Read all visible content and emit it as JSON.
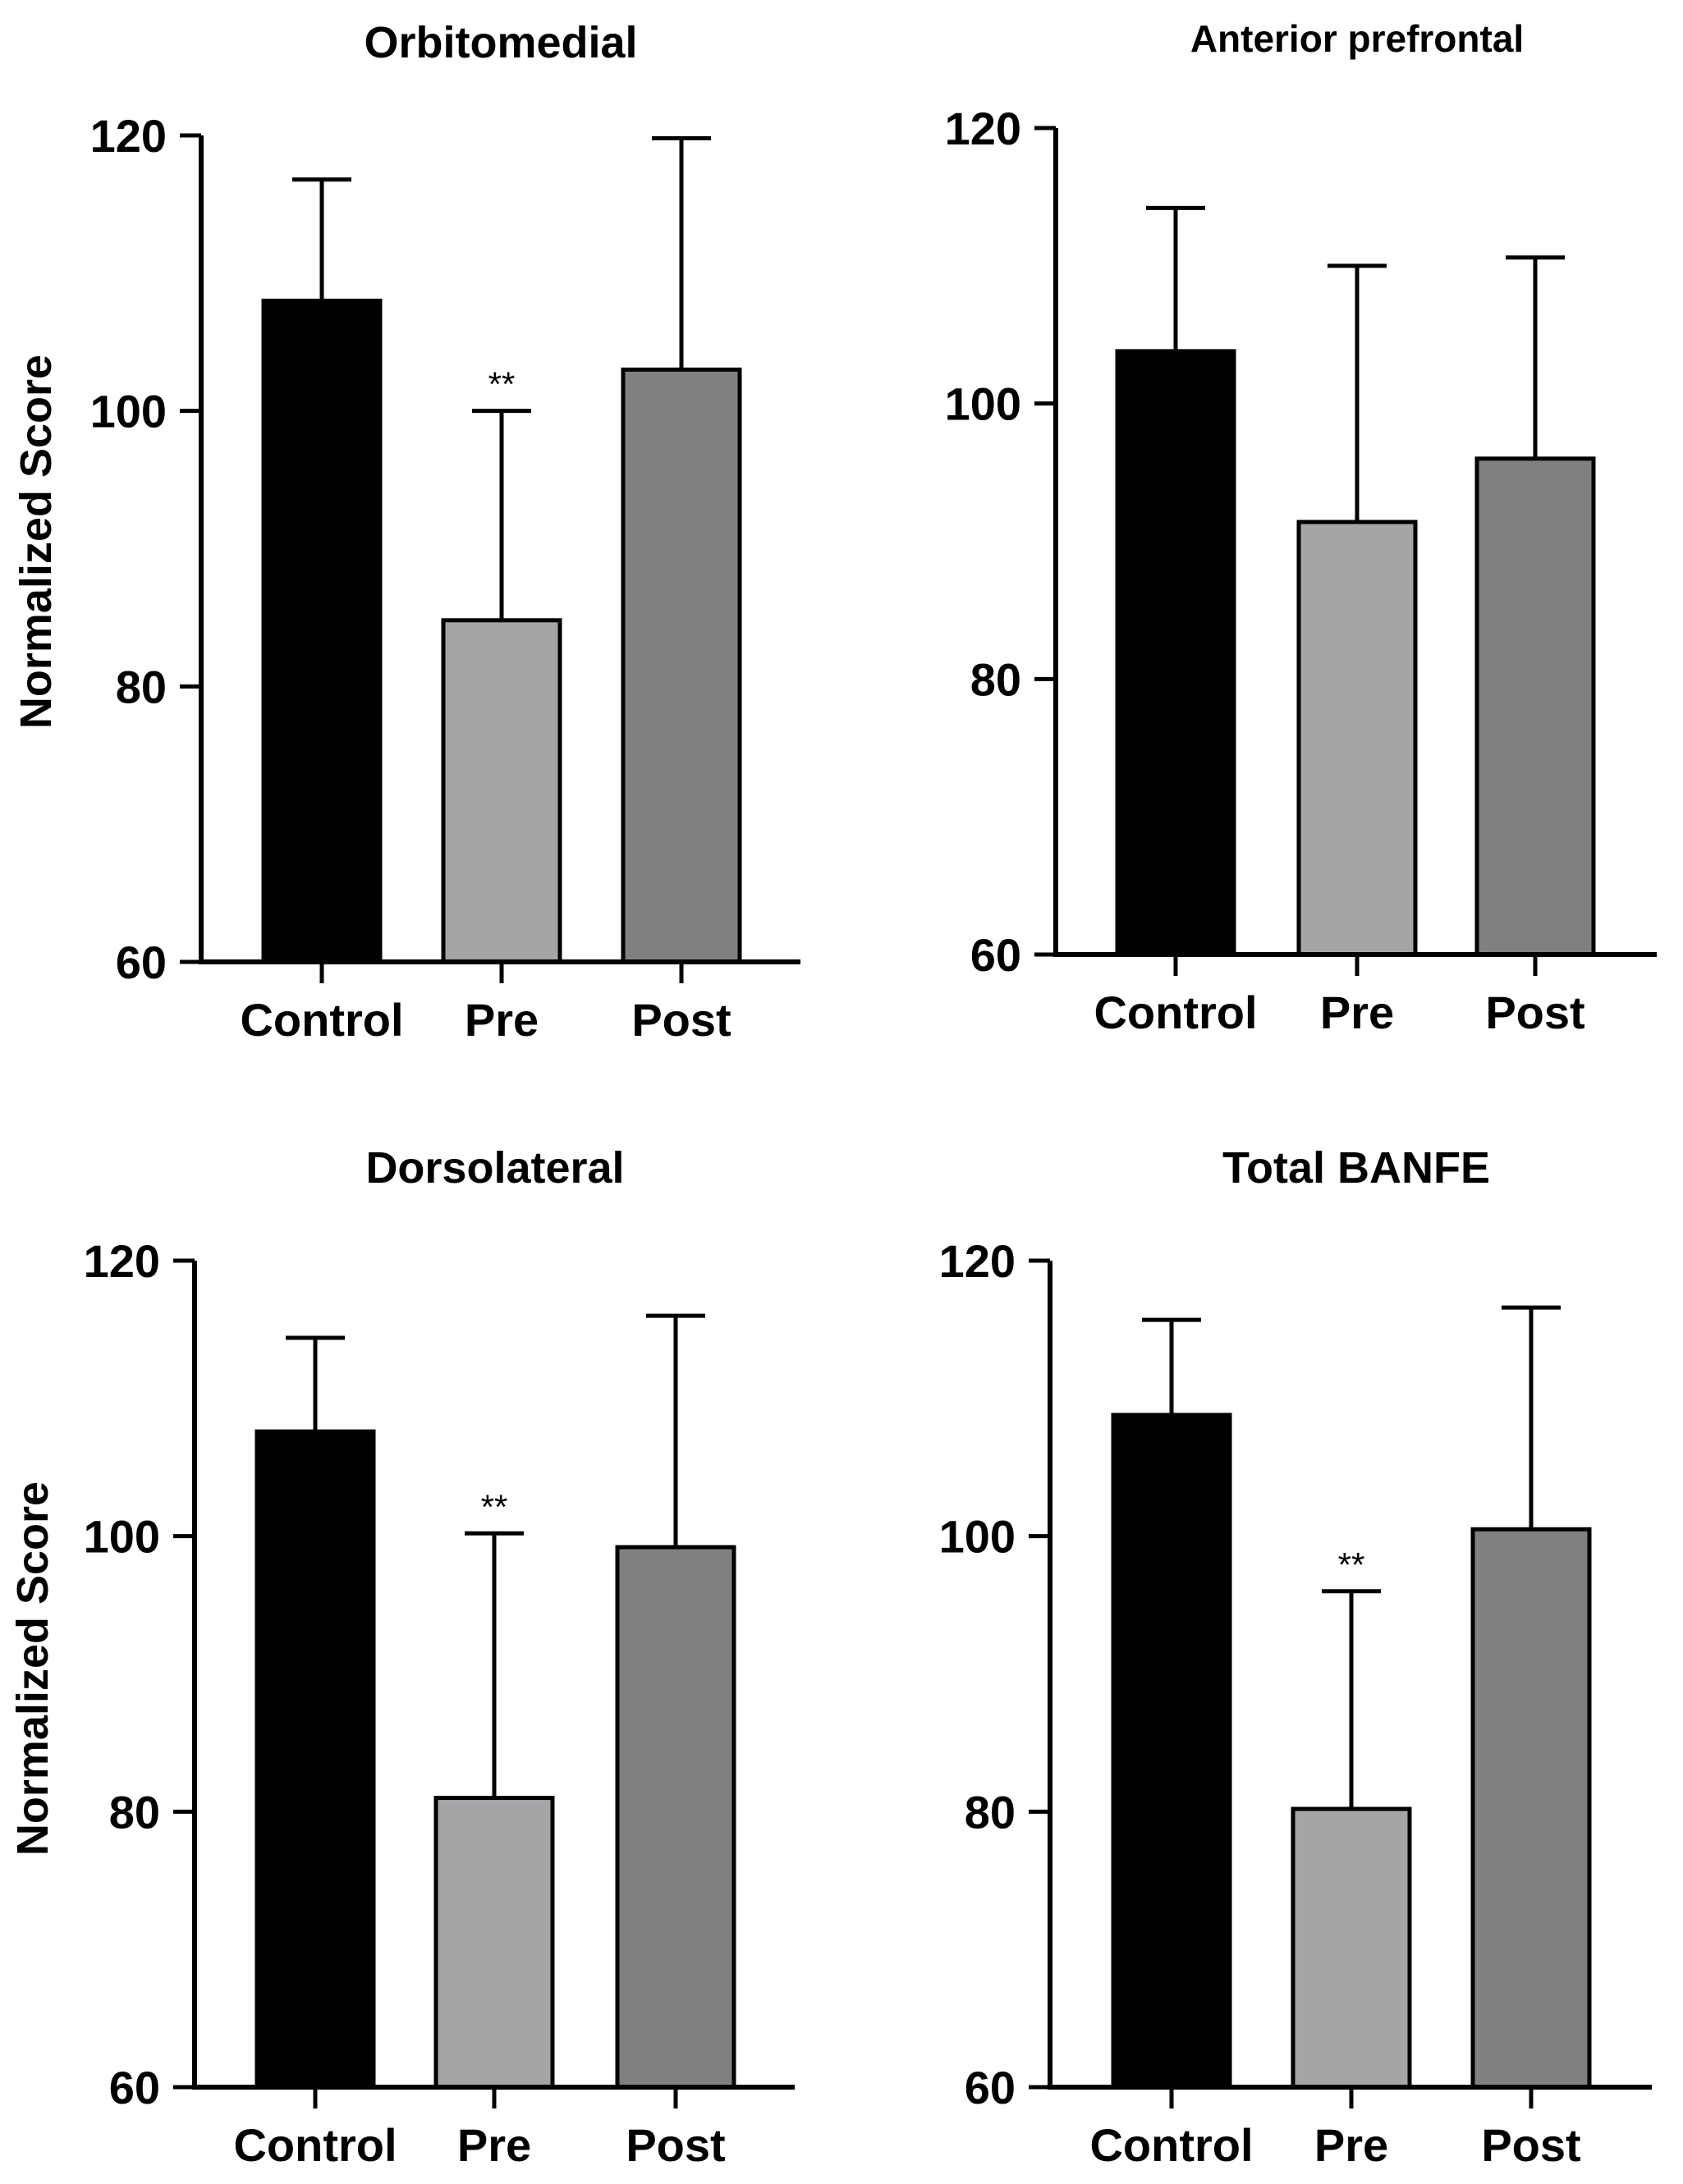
{
  "chart_data": [
    {
      "type": "bar",
      "title": "Orbitomedial",
      "ylabel": "Normalized Score",
      "xlabel": "",
      "ylim": [
        60,
        120
      ],
      "yticks": [
        60,
        80,
        100,
        120
      ],
      "categories": [
        "Control",
        "Pre",
        "Post"
      ],
      "values": [
        108,
        84.8,
        103
      ],
      "error_upper": [
        116.8,
        100,
        119.8
      ],
      "colors": [
        "#000000",
        "#a5a5a8",
        "#808080"
      ],
      "annotations": [
        {
          "category": "Pre",
          "text": "**"
        }
      ]
    },
    {
      "type": "bar",
      "title": "Anterior prefrontal",
      "ylabel": "",
      "xlabel": "",
      "ylim": [
        60,
        120
      ],
      "yticks": [
        60,
        80,
        100,
        120
      ],
      "categories": [
        "Control",
        "Pre",
        "Post"
      ],
      "values": [
        103.8,
        91.4,
        96
      ],
      "error_upper": [
        114.2,
        110,
        110.6
      ],
      "colors": [
        "#000000",
        "#a5a5a8",
        "#808080"
      ],
      "annotations": []
    },
    {
      "type": "bar",
      "title": "Dorsolateral",
      "ylabel": "Normalized Score",
      "xlabel": "",
      "ylim": [
        60,
        120
      ],
      "yticks": [
        60,
        80,
        100,
        120
      ],
      "categories": [
        "Control",
        "Pre",
        "Post"
      ],
      "values": [
        107.6,
        81,
        99.2
      ],
      "error_upper": [
        114.4,
        100.2,
        116
      ],
      "colors": [
        "#000000",
        "#a5a5a8",
        "#808080"
      ],
      "annotations": [
        {
          "category": "Pre",
          "text": "**"
        }
      ]
    },
    {
      "type": "bar",
      "title": "Total BANFE",
      "ylabel": "",
      "xlabel": "",
      "ylim": [
        60,
        120
      ],
      "yticks": [
        60,
        80,
        100,
        120
      ],
      "categories": [
        "Control",
        "Pre",
        "Post"
      ],
      "values": [
        108.8,
        80.2,
        100.5
      ],
      "error_upper": [
        115.7,
        96,
        116.6
      ],
      "colors": [
        "#000000",
        "#a5a5a8",
        "#808080"
      ],
      "annotations": [
        {
          "category": "Pre",
          "text": "**"
        }
      ]
    }
  ]
}
